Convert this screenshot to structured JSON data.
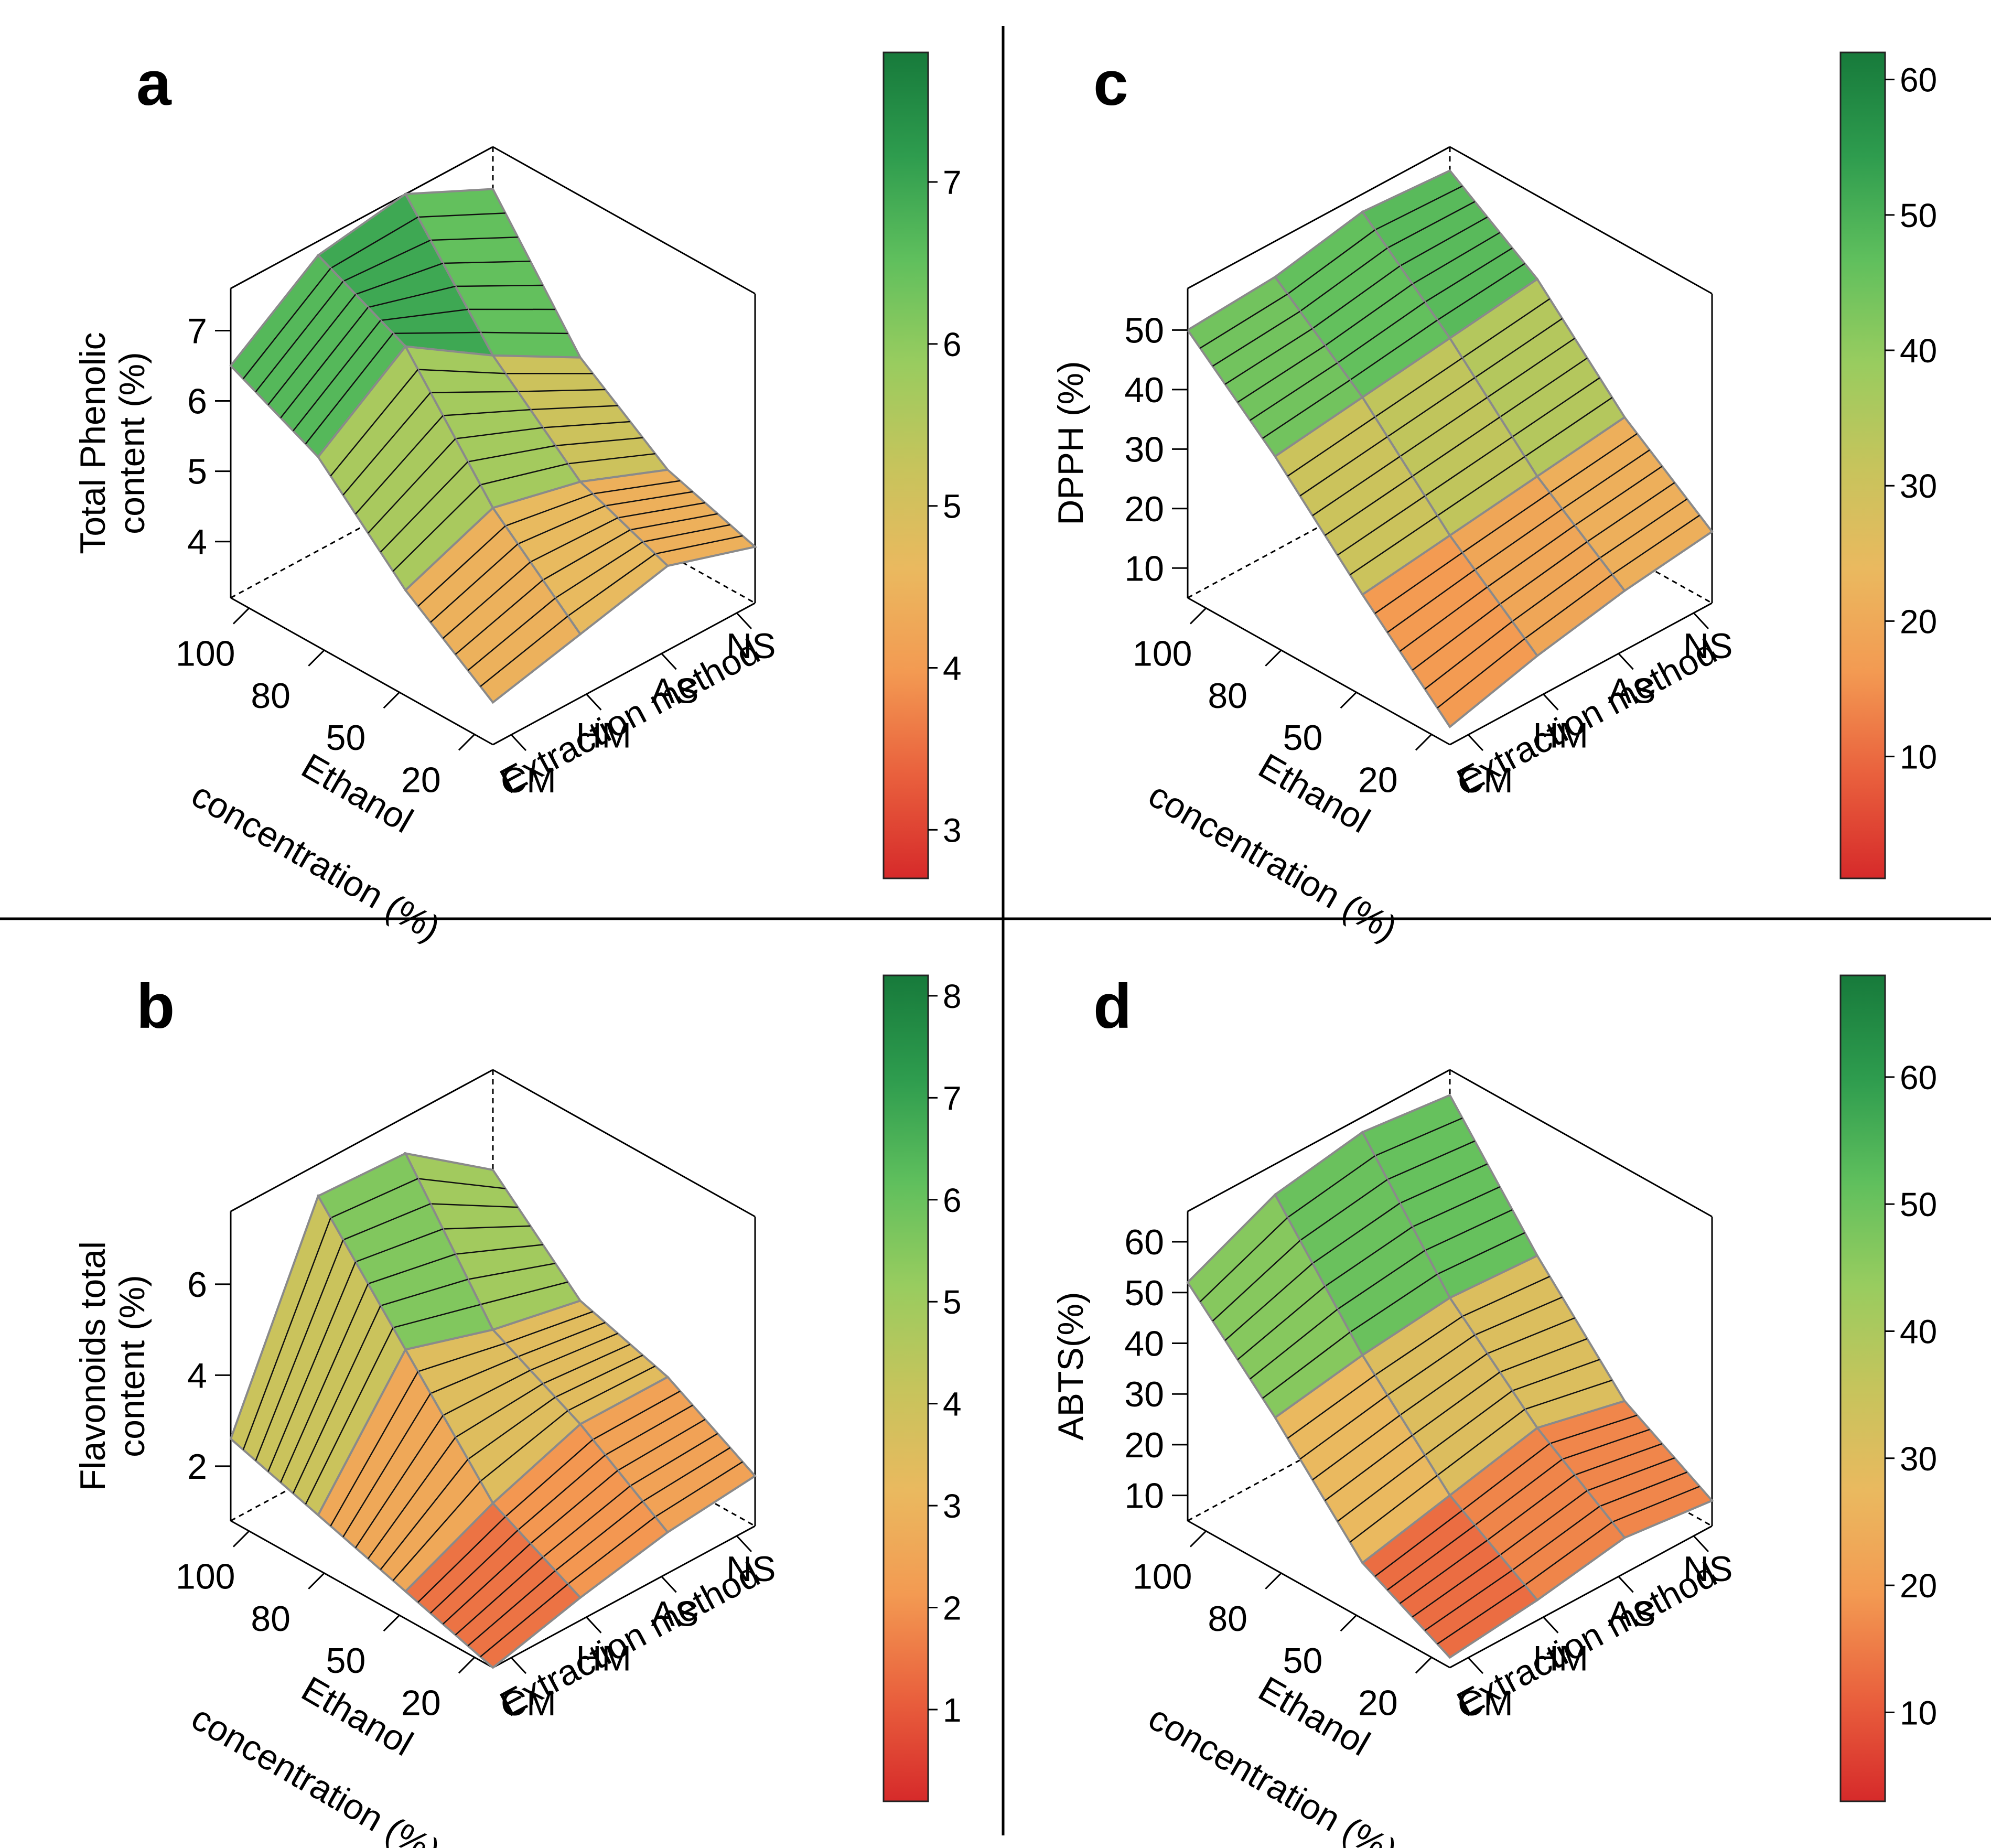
{
  "figure": {
    "panels_order": [
      "a",
      "c",
      "b",
      "d"
    ]
  },
  "colors": {
    "scale": [
      "#d62a2a",
      "#e9603d",
      "#f39a52",
      "#eab95f",
      "#c6c45c",
      "#98cc5f",
      "#5fbf5d",
      "#2e9c4e",
      "#177a3b"
    ],
    "surface_edge": "#8a8a8a",
    "hatch": "#111111",
    "frame": "#000000"
  },
  "x_axis": {
    "categories": [
      "100",
      "80",
      "50",
      "20"
    ],
    "label_line1": "Ethanol",
    "label_line2": "concentration (%)"
  },
  "y_axis": {
    "categories": [
      "CM",
      "HM",
      "AS",
      "NS"
    ],
    "label": "Extraction method"
  },
  "chart_data": [
    {
      "id": "a",
      "letter": "a",
      "type": "surface3d",
      "z_label_line1": "Total Phenolic",
      "z_label_line2": "content (%)",
      "z_ticks": [
        "4",
        "5",
        "6",
        "7"
      ],
      "z_range": [
        3.2,
        7.6
      ],
      "colorbar_ticks": [
        "3",
        "4",
        "5",
        "6",
        "7"
      ],
      "colorbar_range": [
        2.7,
        7.8
      ],
      "z_values": [
        [
          6.5,
          7.4,
          7.6,
          7.0
        ],
        [
          5.9,
          6.8,
          6.0,
          5.3
        ],
        [
          4.7,
          5.2,
          4.9,
          4.4
        ],
        [
          3.8,
          4.1,
          4.4,
          4.0
        ]
      ]
    },
    {
      "id": "c",
      "letter": "c",
      "type": "surface3d",
      "z_label_line1": "DPPH (%)",
      "z_label_line2": "",
      "z_ticks": [
        "10",
        "20",
        "30",
        "40",
        "50"
      ],
      "z_range": [
        5,
        57
      ],
      "colorbar_ticks": [
        "10",
        "20",
        "30",
        "40",
        "50",
        "60"
      ],
      "colorbar_range": [
        1,
        62
      ],
      "z_values": [
        [
          50,
          51,
          54,
          53
        ],
        [
          37,
          39,
          41,
          43
        ],
        [
          22,
          24,
          26,
          28
        ],
        [
          8,
          12,
          15,
          17
        ]
      ]
    },
    {
      "id": "b",
      "letter": "b",
      "type": "surface3d",
      "z_label_line1": "Flavonoids total",
      "z_label_line2": "content (%)",
      "z_ticks": [
        "2",
        "4",
        "6"
      ],
      "z_range": [
        0.8,
        7.6
      ],
      "colorbar_ticks": [
        "1",
        "2",
        "3",
        "4",
        "5",
        "6",
        "7",
        "8"
      ],
      "colorbar_range": [
        0.1,
        8.2
      ],
      "z_values": [
        [
          2.6,
          6.9,
          6.8,
          5.4
        ],
        [
          2.0,
          4.6,
          4.0,
          3.6
        ],
        [
          1.4,
          2.3,
          3.0,
          3.0
        ],
        [
          0.8,
          1.3,
          1.7,
          1.9
        ]
      ]
    },
    {
      "id": "d",
      "letter": "d",
      "type": "surface3d",
      "z_label_line1": "ABTS(%)",
      "z_label_line2": "",
      "z_ticks": [
        "10",
        "20",
        "30",
        "40",
        "50",
        "60"
      ],
      "z_range": [
        5,
        66
      ],
      "colorbar_ticks": [
        "10",
        "20",
        "30",
        "40",
        "50",
        "60"
      ],
      "colorbar_range": [
        3,
        68
      ],
      "z_values": [
        [
          52,
          60,
          63,
          61
        ],
        [
          35,
          38,
          40,
          39
        ],
        [
          16,
          20,
          24,
          20
        ],
        [
          7,
          9,
          12,
          10
        ]
      ]
    }
  ]
}
